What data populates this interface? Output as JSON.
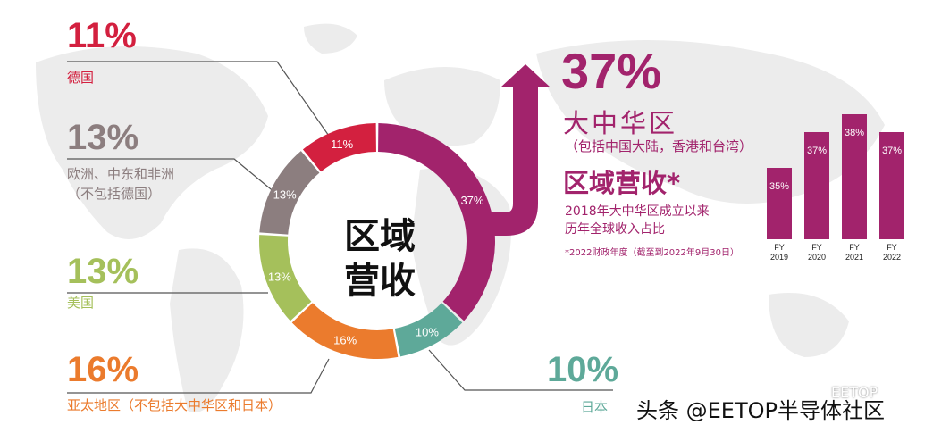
{
  "center_title": [
    "区域",
    "营收"
  ],
  "labels": {
    "germany": {
      "pct": "11%",
      "name": "德国",
      "color": "#d3203f"
    },
    "emea": {
      "pct": "13%",
      "name1": "欧洲、中东和非洲",
      "name2": "（不包括德国）",
      "color": "#8c7e7f"
    },
    "americas": {
      "pct": "13%",
      "name": "美国",
      "color": "#a5c05b"
    },
    "apac": {
      "pct": "16%",
      "name": "亚太地区（不包括大中华区和日本）",
      "color": "#eb7b2d"
    },
    "japan": {
      "pct": "10%",
      "name": "日本",
      "color": "#5ea999"
    }
  },
  "main": {
    "pct": "37%",
    "region": "大中华区",
    "region_note": "（包括中国大陆，香港和台湾）",
    "heading": "区域营收*",
    "desc1": "2018年大中华区成立以来",
    "desc2": "历年全球收入占比",
    "footnote": "*2022财政年度（截至到2022年9月30日）",
    "color": "#a2236c"
  },
  "watermark": "头条 @EETOP半导体社区",
  "watermark_logo": "EETOP",
  "chart_data": [
    {
      "type": "pie",
      "categories": [
        "大中华区",
        "日本",
        "亚太地区（不包括大中华区和日本）",
        "美国",
        "欧洲、中东和非洲（不包括德国）",
        "德国"
      ],
      "values": [
        37,
        10,
        16,
        13,
        13,
        11
      ],
      "labels": [
        "37%",
        "10%",
        "16%",
        "13%",
        "13%",
        "11%"
      ],
      "colors": [
        "#a2236c",
        "#5ea999",
        "#eb7b2d",
        "#a5c05b",
        "#8c7e7f",
        "#d3203f"
      ],
      "title": "区域营收"
    },
    {
      "type": "bar",
      "categories": [
        "FY 2019",
        "FY 2020",
        "FY 2021",
        "FY 2022"
      ],
      "tick_top": [
        "FY",
        "FY",
        "FY",
        "FY"
      ],
      "tick_bottom": [
        "2019",
        "2020",
        "2021",
        "2022"
      ],
      "values": [
        35,
        37,
        38,
        37
      ],
      "labels": [
        "35%",
        "37%",
        "38%",
        "37%"
      ],
      "color": "#a2236c"
    }
  ]
}
